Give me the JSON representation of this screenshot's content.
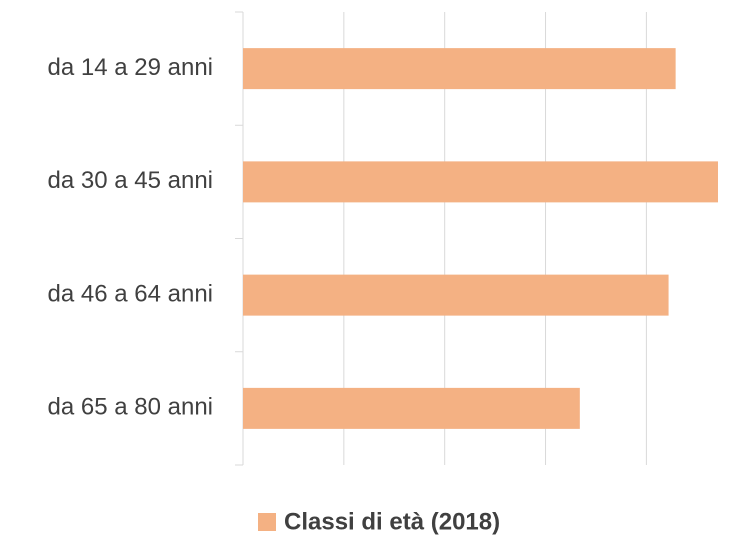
{
  "chart_data": {
    "type": "barh",
    "categories": [
      "da 14 a 29 anni",
      "da 30 a 45 anni",
      "da 46 a 64 anni",
      "da 65 a 80 anni"
    ],
    "series": [
      {
        "name": "Classi di età (2018)",
        "color": "#f4b183",
        "values": [
          4.29,
          4.71,
          4.22,
          3.34
        ]
      }
    ],
    "xlim": [
      0,
      4.72
    ],
    "xticks": [
      0,
      1,
      2,
      3,
      4
    ],
    "grid": true,
    "legend": "bottom"
  }
}
